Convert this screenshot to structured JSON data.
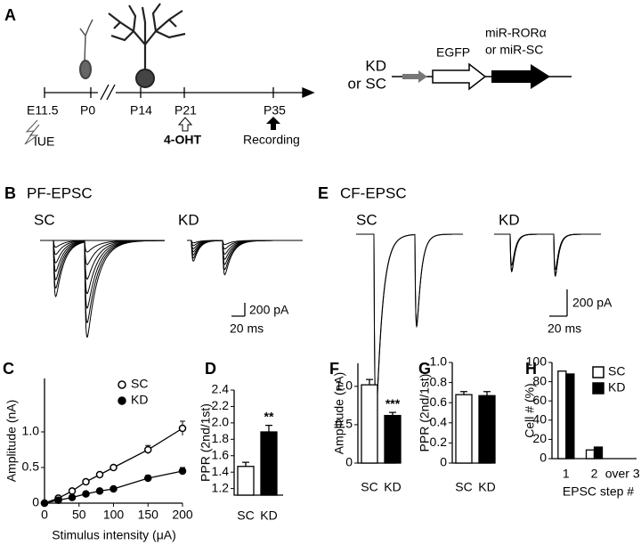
{
  "panel_a": {
    "label": "A",
    "timeline": [
      "E11.5",
      "P0",
      "P14",
      "P21",
      "P35"
    ],
    "events": [
      "IUE",
      "4-OHT",
      "Recording"
    ],
    "construct": {
      "name_lines": [
        "KD",
        "or SC"
      ],
      "reporter": "EGFP",
      "insert_lines": [
        "miR-RORα",
        "or miR-SC"
      ]
    }
  },
  "panel_b": {
    "label": "B",
    "title": "PF-EPSC",
    "conditions": [
      "SC",
      "KD"
    ],
    "scale_current": "200 pA",
    "scale_time": "20 ms"
  },
  "panel_e": {
    "label": "E",
    "title": "CF-EPSC",
    "conditions": [
      "SC",
      "KD"
    ],
    "scale_current": "200 pA",
    "scale_time": "20 ms"
  },
  "chart_data": [
    {
      "type": "line",
      "label": "C",
      "xlabel": "Stimulus intensity (μA)",
      "ylabel": "Amplitude (nA)",
      "x": [
        0,
        20,
        40,
        60,
        80,
        100,
        150,
        200
      ],
      "xlim": [
        0,
        200
      ],
      "xticks": [
        0,
        50,
        100,
        150,
        200
      ],
      "ylim": [
        0,
        1.75
      ],
      "yticks": [
        0,
        0.5,
        {
          "value": 1,
          "label": "1.0"
        }
      ],
      "series": [
        {
          "name": "SC",
          "color": "#ffffff",
          "values": [
            0,
            0.07,
            0.17,
            0.3,
            0.4,
            0.5,
            0.75,
            1.05
          ],
          "errors": [
            0.01,
            0.02,
            0.02,
            0.03,
            0.03,
            0.03,
            0.06,
            0.1
          ]
        },
        {
          "name": "KD",
          "color": "#000000",
          "values": [
            0,
            0.04,
            0.08,
            0.13,
            0.17,
            0.2,
            0.35,
            0.45
          ],
          "errors": [
            0.01,
            0.01,
            0.01,
            0.02,
            0.02,
            0.02,
            0.04,
            0.05
          ]
        }
      ]
    },
    {
      "type": "bar",
      "label": "D",
      "ylabel": "PPR (2nd/1st)",
      "categories": [
        "SC",
        "KD"
      ],
      "values": [
        1.47,
        1.89
      ],
      "errors": [
        0.05,
        0.08
      ],
      "colors": [
        "#ffffff",
        "#000000"
      ],
      "annotation": "**",
      "ylim": [
        1.12,
        2.4
      ],
      "yticks": [
        1.2,
        1.4,
        1.6,
        1.8,
        {
          "value": 2,
          "label": "2.0"
        },
        2.2,
        2.4
      ]
    },
    {
      "type": "bar",
      "label": "F",
      "ylabel": "Amplitude (nA)",
      "categories": [
        "SC",
        "KD"
      ],
      "values": [
        1.02,
        0.62
      ],
      "errors": [
        0.07,
        0.04
      ],
      "colors": [
        "#ffffff",
        "#000000"
      ],
      "annotation": "***",
      "ylim": [
        0,
        1.3
      ],
      "yticks": [
        0,
        0.5,
        {
          "value": 1,
          "label": "1.0"
        }
      ]
    },
    {
      "type": "bar",
      "label": "G",
      "ylabel": "PPR (2nd/1st)",
      "categories": [
        "SC",
        "KD"
      ],
      "values": [
        0.68,
        0.67
      ],
      "errors": [
        0.03,
        0.04
      ],
      "colors": [
        "#ffffff",
        "#000000"
      ],
      "ylim": [
        0,
        1
      ],
      "yticks": [
        0,
        0.2,
        0.4,
        0.6,
        0.8,
        {
          "value": 1,
          "label": "1.0"
        }
      ]
    },
    {
      "type": "bar",
      "label": "H",
      "ylabel": "Cell # (%)",
      "xlabel": "EPSC step #",
      "categories": [
        "1",
        "2",
        "over 3"
      ],
      "ylim": [
        0,
        100
      ],
      "yticks": [
        0,
        20,
        40,
        60,
        80,
        100
      ],
      "series": [
        {
          "name": "SC",
          "color": "#ffffff",
          "values": [
            91,
            9,
            0
          ]
        },
        {
          "name": "KD",
          "color": "#000000",
          "values": [
            88,
            12,
            0
          ]
        }
      ]
    }
  ]
}
